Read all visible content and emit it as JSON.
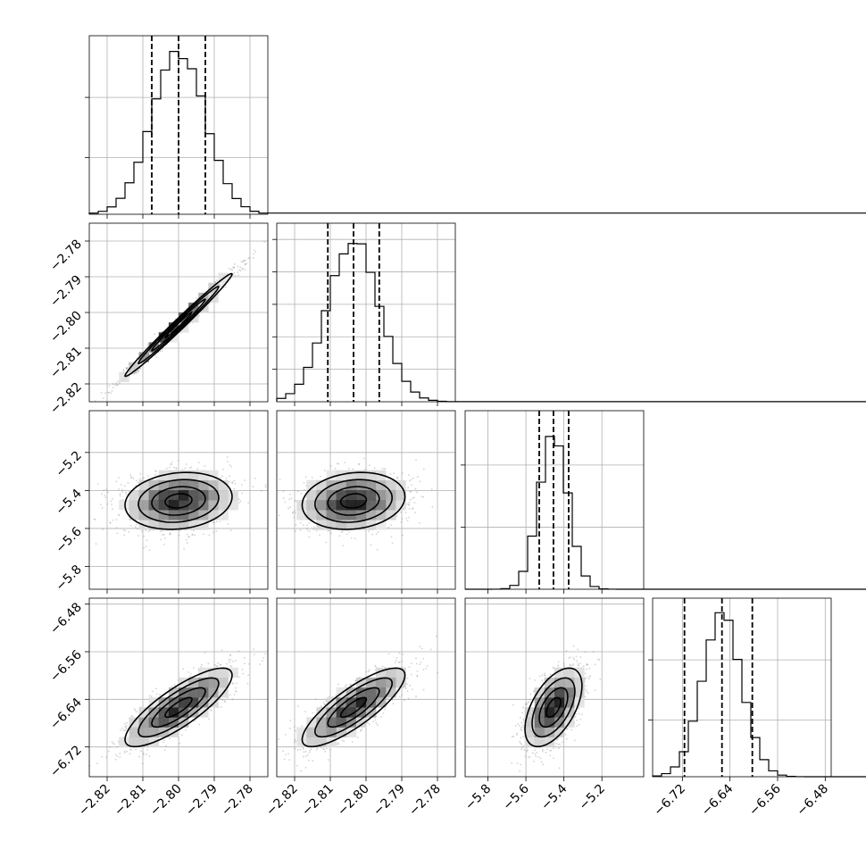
{
  "chart_data": {
    "type": "corner",
    "grid": true,
    "quantiles": [
      0.16,
      0.5,
      0.84
    ],
    "colors": {
      "hist": "#000000",
      "points": "#808080",
      "density_high": "#000000",
      "density_low": "#ffffff",
      "grid": "#b0b0b0"
    },
    "parameters": [
      {
        "range": [
          -2.825,
          -2.775
        ],
        "ticks": [
          -2.82,
          -2.81,
          -2.8,
          -2.79,
          -2.78
        ],
        "tick_labels": [
          "−2.82",
          "−2.81",
          "−2.80",
          "−2.79",
          "−2.78"
        ],
        "mean": -2.8,
        "std": 0.0075,
        "quantile_values": [
          -2.8075,
          -2.8,
          -2.7925
        ],
        "hist_peak_density": 1.0,
        "diag_ylim_top": 1.1
      },
      {
        "range": [
          -2.825,
          -2.775
        ],
        "ticks": [
          -2.82,
          -2.81,
          -2.8,
          -2.79,
          -2.78
        ],
        "tick_labels": [
          "−2.82",
          "−2.81",
          "−2.80",
          "−2.79",
          "−2.78"
        ],
        "mean": -2.8035,
        "std": 0.0072,
        "quantile_values": [
          -2.8107,
          -2.8035,
          -2.7963
        ],
        "hist_peak_density": 1.0,
        "diag_ylim_top": 1.1
      },
      {
        "range": [
          -5.92,
          -4.98
        ],
        "ticks": [
          -5.8,
          -5.6,
          -5.4,
          -5.2
        ],
        "tick_labels": [
          "−5.8",
          "−5.6",
          "−5.4",
          "−5.2"
        ],
        "mean": -5.455,
        "std": 0.075,
        "quantile_values": [
          -5.53,
          -5.455,
          -5.375
        ],
        "hist_peak_density": 1.0,
        "diag_ylim_top": 1.15
      },
      {
        "range": [
          -6.77,
          -6.47
        ],
        "ticks": [
          -6.72,
          -6.64,
          -6.56,
          -6.48
        ],
        "tick_labels": [
          "−6.72",
          "−6.64",
          "−6.56",
          "−6.48"
        ],
        "mean": -6.6535,
        "std": 0.033,
        "quantile_values": [
          -6.7165,
          -6.6535,
          -6.6025
        ],
        "hist_peak_density": 1.0,
        "diag_ylim_top": 1.1
      }
    ],
    "correlations": {
      "1_0": 0.99,
      "2_0": 0.15,
      "2_1": 0.15,
      "3_0": 0.82,
      "3_1": 0.82,
      "3_2": 0.55
    },
    "diag_y_ticks": [
      [
        0.35,
        0.72
      ],
      [
        0.2,
        0.4,
        0.6,
        0.8,
        1.0
      ],
      [
        0.4,
        0.8
      ],
      [
        0.35,
        0.72
      ]
    ]
  }
}
